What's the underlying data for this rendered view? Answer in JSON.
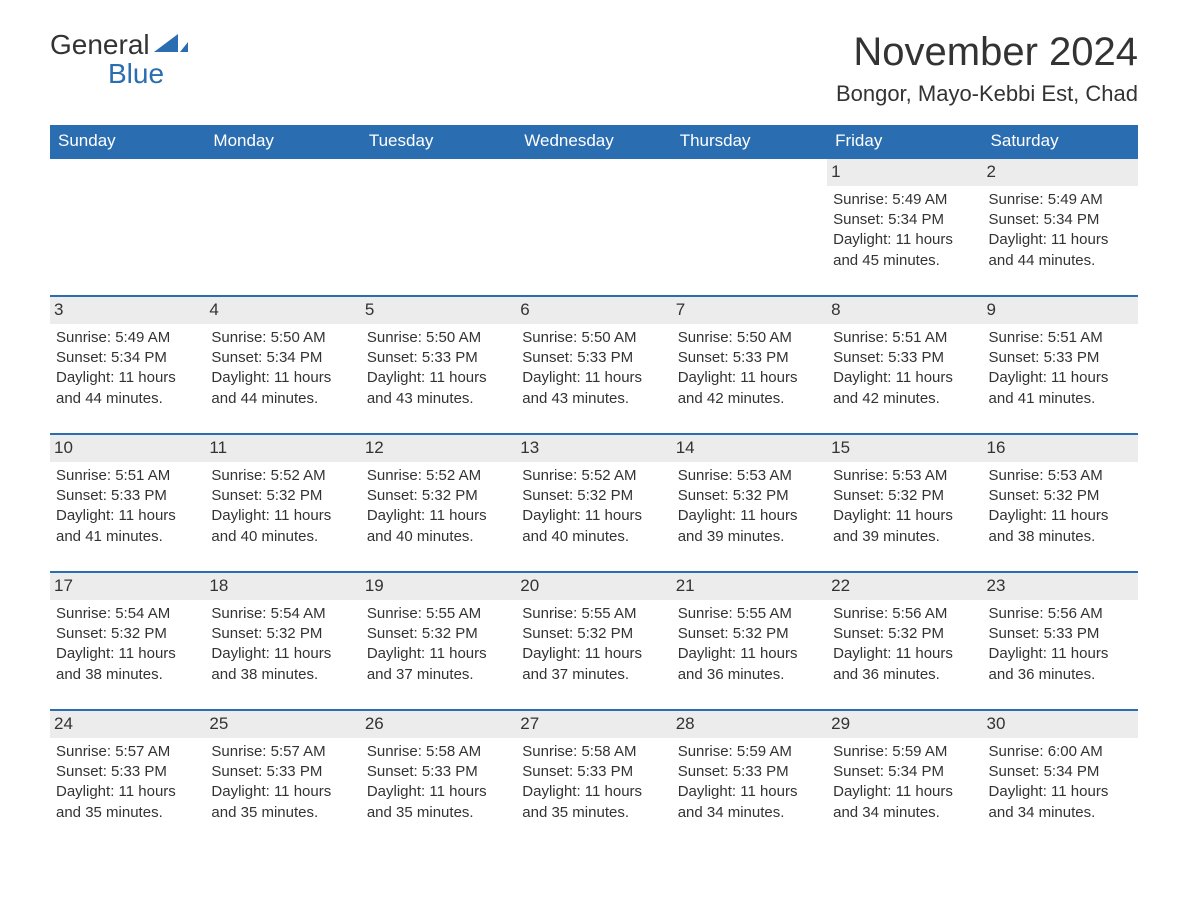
{
  "logo": {
    "text_general": "General",
    "text_blue": "Blue"
  },
  "title": {
    "month": "November 2024",
    "location": "Bongor, Mayo-Kebbi Est, Chad"
  },
  "colors": {
    "header_bg": "#2b6db1",
    "header_text": "#ffffff",
    "day_number_bg": "#ececec",
    "border": "#2b6db1",
    "body_text": "#333333",
    "background": "#ffffff"
  },
  "typography": {
    "month_title_fontsize": 40,
    "location_fontsize": 22,
    "weekday_fontsize": 17,
    "day_number_fontsize": 17,
    "body_fontsize": 15
  },
  "weekdays": [
    "Sunday",
    "Monday",
    "Tuesday",
    "Wednesday",
    "Thursday",
    "Friday",
    "Saturday"
  ],
  "weeks": [
    [
      null,
      null,
      null,
      null,
      null,
      {
        "n": "1",
        "sunrise": "5:49 AM",
        "sunset": "5:34 PM",
        "daylight": "11 hours and 45 minutes."
      },
      {
        "n": "2",
        "sunrise": "5:49 AM",
        "sunset": "5:34 PM",
        "daylight": "11 hours and 44 minutes."
      }
    ],
    [
      {
        "n": "3",
        "sunrise": "5:49 AM",
        "sunset": "5:34 PM",
        "daylight": "11 hours and 44 minutes."
      },
      {
        "n": "4",
        "sunrise": "5:50 AM",
        "sunset": "5:34 PM",
        "daylight": "11 hours and 44 minutes."
      },
      {
        "n": "5",
        "sunrise": "5:50 AM",
        "sunset": "5:33 PM",
        "daylight": "11 hours and 43 minutes."
      },
      {
        "n": "6",
        "sunrise": "5:50 AM",
        "sunset": "5:33 PM",
        "daylight": "11 hours and 43 minutes."
      },
      {
        "n": "7",
        "sunrise": "5:50 AM",
        "sunset": "5:33 PM",
        "daylight": "11 hours and 42 minutes."
      },
      {
        "n": "8",
        "sunrise": "5:51 AM",
        "sunset": "5:33 PM",
        "daylight": "11 hours and 42 minutes."
      },
      {
        "n": "9",
        "sunrise": "5:51 AM",
        "sunset": "5:33 PM",
        "daylight": "11 hours and 41 minutes."
      }
    ],
    [
      {
        "n": "10",
        "sunrise": "5:51 AM",
        "sunset": "5:33 PM",
        "daylight": "11 hours and 41 minutes."
      },
      {
        "n": "11",
        "sunrise": "5:52 AM",
        "sunset": "5:32 PM",
        "daylight": "11 hours and 40 minutes."
      },
      {
        "n": "12",
        "sunrise": "5:52 AM",
        "sunset": "5:32 PM",
        "daylight": "11 hours and 40 minutes."
      },
      {
        "n": "13",
        "sunrise": "5:52 AM",
        "sunset": "5:32 PM",
        "daylight": "11 hours and 40 minutes."
      },
      {
        "n": "14",
        "sunrise": "5:53 AM",
        "sunset": "5:32 PM",
        "daylight": "11 hours and 39 minutes."
      },
      {
        "n": "15",
        "sunrise": "5:53 AM",
        "sunset": "5:32 PM",
        "daylight": "11 hours and 39 minutes."
      },
      {
        "n": "16",
        "sunrise": "5:53 AM",
        "sunset": "5:32 PM",
        "daylight": "11 hours and 38 minutes."
      }
    ],
    [
      {
        "n": "17",
        "sunrise": "5:54 AM",
        "sunset": "5:32 PM",
        "daylight": "11 hours and 38 minutes."
      },
      {
        "n": "18",
        "sunrise": "5:54 AM",
        "sunset": "5:32 PM",
        "daylight": "11 hours and 38 minutes."
      },
      {
        "n": "19",
        "sunrise": "5:55 AM",
        "sunset": "5:32 PM",
        "daylight": "11 hours and 37 minutes."
      },
      {
        "n": "20",
        "sunrise": "5:55 AM",
        "sunset": "5:32 PM",
        "daylight": "11 hours and 37 minutes."
      },
      {
        "n": "21",
        "sunrise": "5:55 AM",
        "sunset": "5:32 PM",
        "daylight": "11 hours and 36 minutes."
      },
      {
        "n": "22",
        "sunrise": "5:56 AM",
        "sunset": "5:32 PM",
        "daylight": "11 hours and 36 minutes."
      },
      {
        "n": "23",
        "sunrise": "5:56 AM",
        "sunset": "5:33 PM",
        "daylight": "11 hours and 36 minutes."
      }
    ],
    [
      {
        "n": "24",
        "sunrise": "5:57 AM",
        "sunset": "5:33 PM",
        "daylight": "11 hours and 35 minutes."
      },
      {
        "n": "25",
        "sunrise": "5:57 AM",
        "sunset": "5:33 PM",
        "daylight": "11 hours and 35 minutes."
      },
      {
        "n": "26",
        "sunrise": "5:58 AM",
        "sunset": "5:33 PM",
        "daylight": "11 hours and 35 minutes."
      },
      {
        "n": "27",
        "sunrise": "5:58 AM",
        "sunset": "5:33 PM",
        "daylight": "11 hours and 35 minutes."
      },
      {
        "n": "28",
        "sunrise": "5:59 AM",
        "sunset": "5:33 PM",
        "daylight": "11 hours and 34 minutes."
      },
      {
        "n": "29",
        "sunrise": "5:59 AM",
        "sunset": "5:34 PM",
        "daylight": "11 hours and 34 minutes."
      },
      {
        "n": "30",
        "sunrise": "6:00 AM",
        "sunset": "5:34 PM",
        "daylight": "11 hours and 34 minutes."
      }
    ]
  ],
  "labels": {
    "sunrise": "Sunrise: ",
    "sunset": "Sunset: ",
    "daylight": "Daylight: "
  }
}
